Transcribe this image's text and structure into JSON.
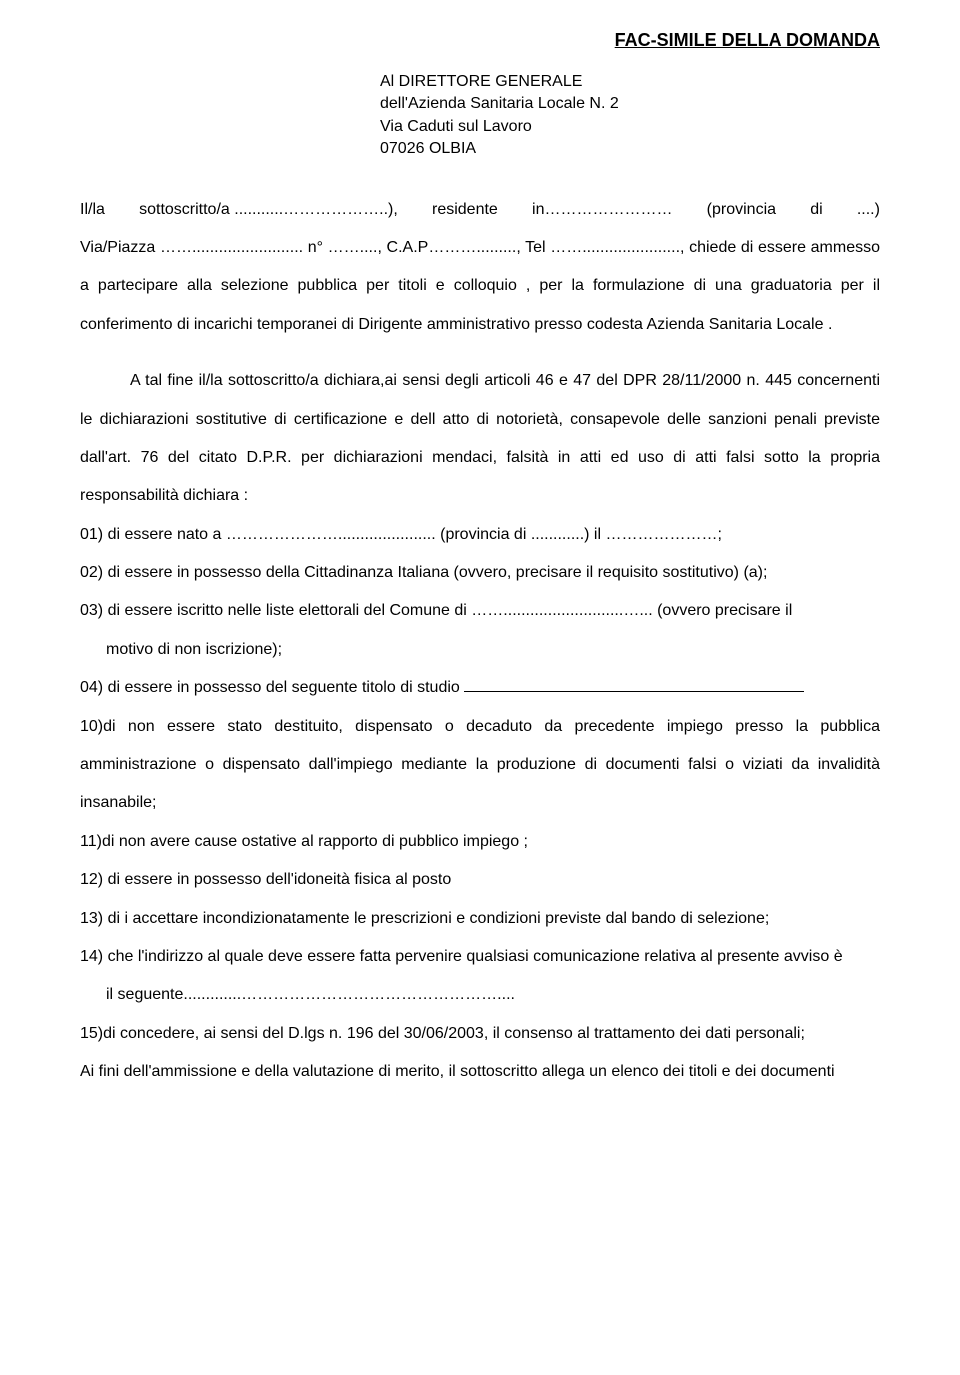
{
  "header": {
    "title": "FAC-SIMILE DELLA DOMANDA"
  },
  "addressee": {
    "line1": "Al DIRETTORE GENERALE",
    "line2": "dell'Azienda Sanitaria Locale N. 2",
    "line3": "Via Caduti sul Lavoro",
    "line4": "07026 OLBIA"
  },
  "intro": {
    "p1a": "Il/la",
    "p1b": "sottoscritto/a ...........………………..),",
    "p1c": "residente",
    "p1d": "in……………………",
    "p1e": "(provincia",
    "p1f": "di",
    "p1g": "....)",
    "p2": "Via/Piazza ……......................... n° ……...., C.A.P………........., Tel ……......................, chiede di essere ammesso a partecipare alla selezione pubblica per titoli e colloquio , per la formulazione di una graduatoria per il conferimento di incarichi temporanei  di Dirigente amministrativo presso codesta Azienda Sanitaria Locale ."
  },
  "declaration": {
    "p1": "A tal fine il/la  sottoscritto/a dichiara,ai sensi degli articoli 46 e 47 del DPR 28/11/2000 n. 445 concernenti le dichiarazioni sostitutive  di certificazione e dell atto di notorietà,  consapevole delle sanzioni penali previste dall'art. 76 del citato D.P.R. per  dichiarazioni mendaci, falsità in atti ed uso di atti falsi sotto la propria responsabilità dichiara :"
  },
  "items": {
    "i01": "01) di essere nato a …………………...................... (provincia di ............) il …………………;",
    "i02": "02) di essere in possesso della Cittadinanza Italiana (ovvero, precisare il requisito sostitutivo) (a);",
    "i03": "03) di essere iscritto nelle liste elettorali del Comune di ……...........................…... (ovvero precisare il",
    "i03b": "motivo di non iscrizione);",
    "i04": "04) di essere in possesso del seguente titolo di studio ",
    "i10": "10)di non essere stato destituito, dispensato o decaduto da precedente impiego presso la pubblica amministrazione o dispensato dall'impiego mediante la produzione di documenti falsi o viziati da invalidità insanabile;",
    "i11": "11)di non avere cause ostative al rapporto di pubblico impiego ;",
    "i12": "12) di essere in possesso dell'idoneità fisica al posto",
    "i13": "13) di i accettare incondizionatamente  le prescrizioni e condizioni previste dal bando di selezione;",
    "i14": "14) che l'indirizzo al quale deve essere fatta pervenire qualsiasi comunicazione relativa al presente avviso è",
    "i14b": "il seguente.............…………………………………………....",
    "i15": "15)di concedere, ai sensi del D.lgs n. 196 del 30/06/2003, il consenso al trattamento dei dati personali;"
  },
  "footer": {
    "p1": "Ai fini dell'ammissione e della valutazione di merito, il sottoscritto allega un elenco dei titoli e dei documenti"
  }
}
